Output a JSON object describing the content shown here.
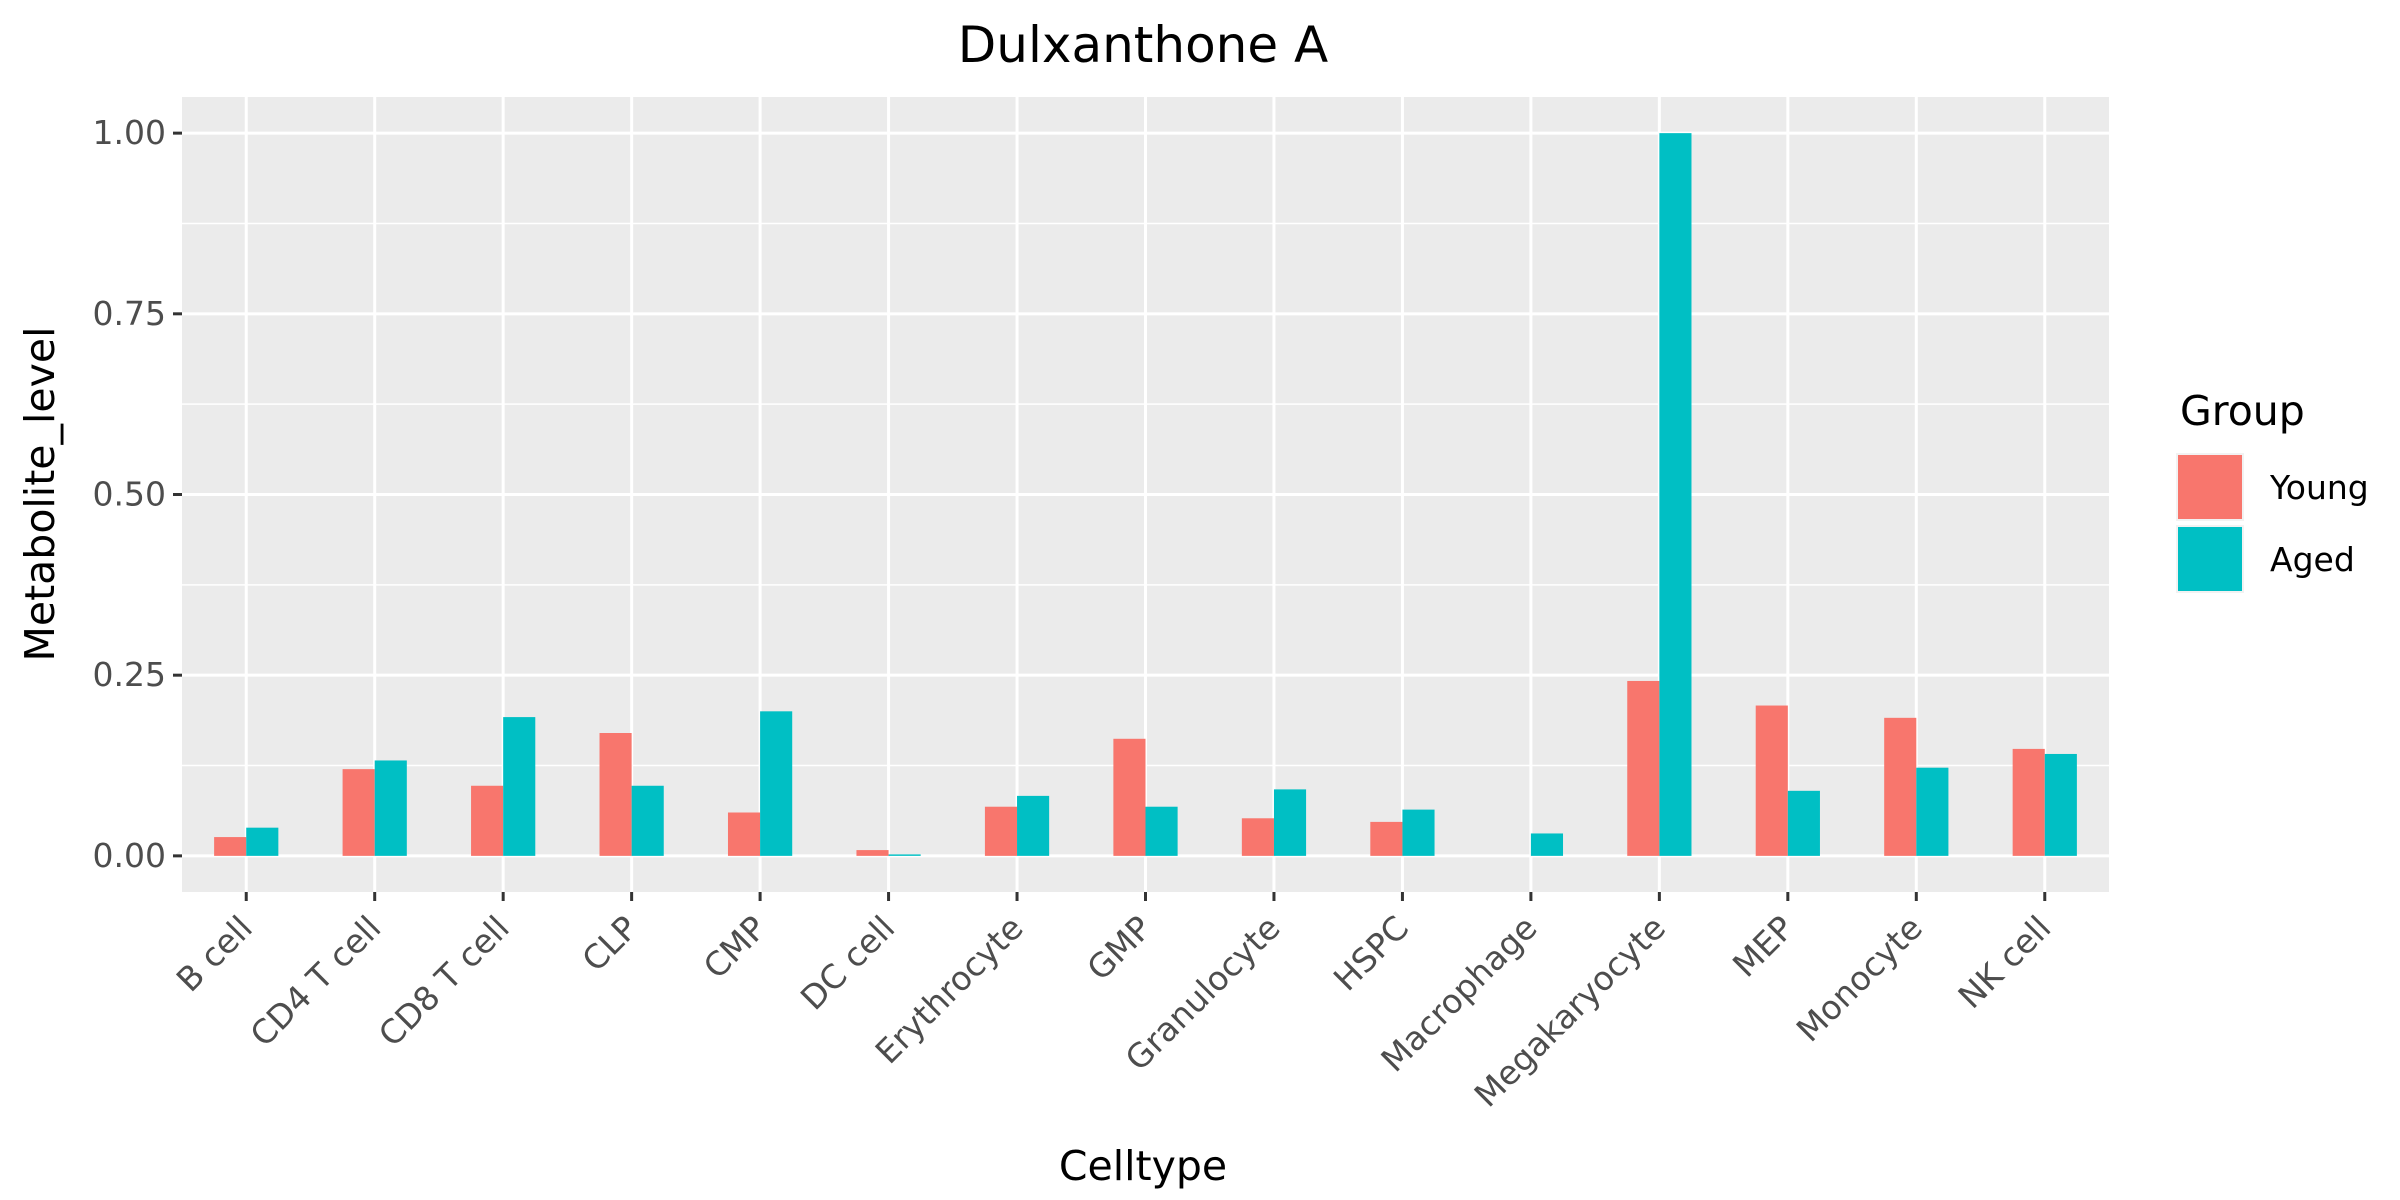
{
  "chart_data": {
    "type": "bar",
    "title": "Dulxanthone A",
    "xlabel": "Celltype",
    "ylabel": "Metabolite_level",
    "ylim": [
      -0.05,
      1.05
    ],
    "yticks": [
      0,
      0.25,
      0.5,
      0.75,
      1.0
    ],
    "ytick_labels": [
      "0.00",
      "0.25",
      "0.50",
      "0.75",
      "1.00"
    ],
    "grid": true,
    "legend_title": "Group",
    "legend_position": "right",
    "categories": [
      "B cell",
      "CD4 T cell",
      "CD8 T cell",
      "CLP",
      "CMP",
      "DC cell",
      "Erythrocyte",
      "GMP",
      "Granulocyte",
      "HSPC",
      "Macrophage",
      "Megakaryocyte",
      "MEP",
      "Monocyte",
      "NK cell"
    ],
    "series": [
      {
        "name": "Young",
        "color": "#F8766D",
        "values": [
          0.026,
          0.12,
          0.097,
          0.17,
          0.06,
          0.008,
          0.068,
          0.162,
          0.052,
          0.047,
          0.0,
          0.242,
          0.208,
          0.191,
          0.148
        ]
      },
      {
        "name": "Aged",
        "color": "#00BFC4",
        "values": [
          0.039,
          0.132,
          0.192,
          0.097,
          0.2,
          0.002,
          0.083,
          0.068,
          0.092,
          0.064,
          0.031,
          1.0,
          0.09,
          0.122,
          0.141
        ]
      }
    ]
  }
}
